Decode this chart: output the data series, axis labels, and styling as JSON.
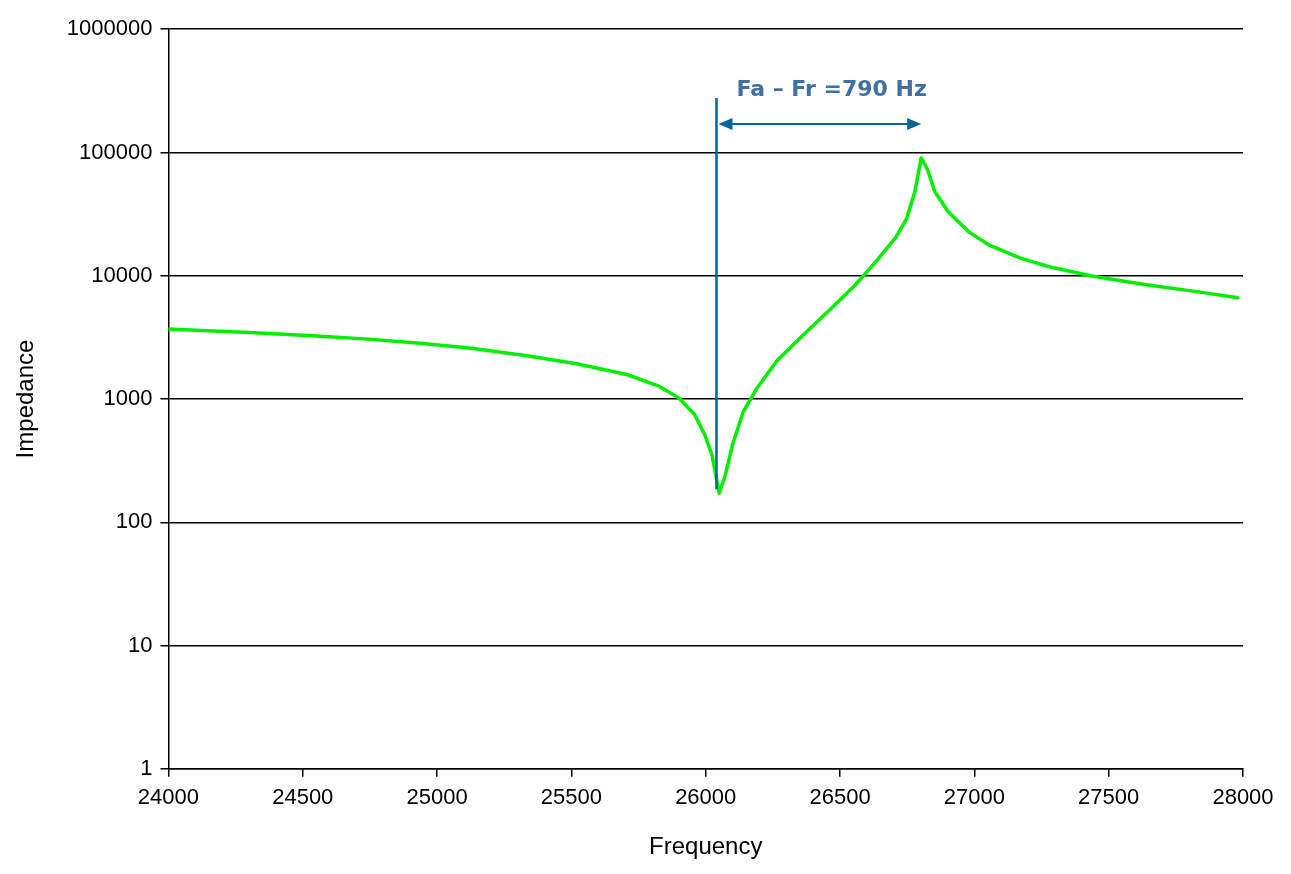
{
  "chart_data": {
    "type": "line",
    "xlabel": "Frequency",
    "ylabel": "Impedance",
    "x": [
      24000,
      24166,
      24358,
      24551,
      24744,
      24937,
      25129,
      25322,
      25515,
      25707,
      25823,
      25900,
      25958,
      25996,
      26023,
      26039,
      26050,
      26073,
      26100,
      26139,
      26189,
      26266,
      26362,
      26458,
      26555,
      26632,
      26709,
      26748,
      26779,
      26802,
      26825,
      26852,
      26902,
      26979,
      27056,
      27172,
      27287,
      27442,
      27634,
      27827,
      27981
    ],
    "series": [
      {
        "color": "#00ee00",
        "values": [
          3690,
          3560,
          3420,
          3240,
          3060,
          2830,
          2580,
          2260,
          1940,
          1580,
          1280,
          1020,
          753,
          516,
          353,
          233,
          172,
          242,
          427,
          781,
          1210,
          2050,
          3290,
          5190,
          8330,
          12900,
          20700,
          29000,
          48400,
          90300,
          73400,
          48400,
          33200,
          22700,
          17700,
          13900,
          11700,
          9890,
          8490,
          7430,
          6640
        ]
      }
    ],
    "log": "y",
    "xlim": [
      24000,
      28000
    ],
    "xticks": [
      24000,
      24500,
      25000,
      25500,
      26000,
      26500,
      27000,
      27500,
      28000
    ],
    "ylim": [
      1,
      1000000
    ],
    "yticks": [
      1,
      10,
      100,
      1000,
      10000,
      100000,
      1000000
    ],
    "grid": "y",
    "marker": "none",
    "line_style": "solid",
    "legend": false,
    "ref_lines": [
      {
        "axis": "x",
        "value": 26040,
        "color": "#006699"
      }
    ],
    "annotations": [
      "Fa – Fr =790 Hz"
    ]
  }
}
